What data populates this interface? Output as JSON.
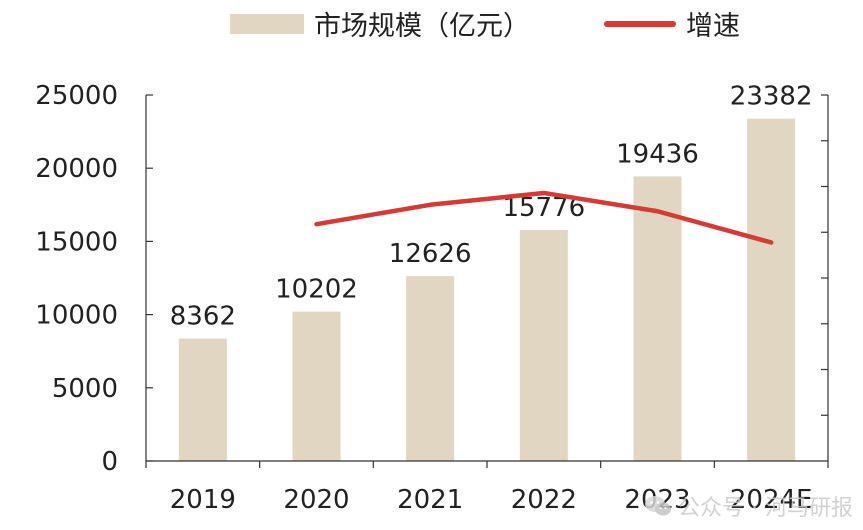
{
  "chart_data": {
    "type": "bar",
    "categories": [
      "2019",
      "2020",
      "2021",
      "2022",
      "2023",
      "2024E"
    ],
    "series": [
      {
        "name": "市场规模（亿元）",
        "kind": "bar",
        "color": "#e0d6c2",
        "values": [
          8362,
          10202,
          12626,
          15776,
          19436,
          23382
        ],
        "labels": [
          "8362",
          "10202",
          "12626",
          "15776",
          "19436",
          "23382"
        ]
      },
      {
        "name": "增速",
        "kind": "line",
        "color": "#d63a35",
        "values": [
          null,
          22.0,
          23.8,
          24.9,
          23.2,
          20.3
        ]
      }
    ],
    "ylim": [
      0,
      25000
    ],
    "yticks": [
      0,
      5000,
      10000,
      15000,
      20000,
      25000
    ],
    "ytick_labels": [
      "0",
      "5000",
      "10000",
      "15000",
      "20000",
      "25000"
    ],
    "y2lim": [
      0,
      34
    ],
    "legend_position": "top",
    "grid": false
  },
  "watermark": {
    "text": "公众号 · 河马研报",
    "icon": "wechat-icon"
  }
}
